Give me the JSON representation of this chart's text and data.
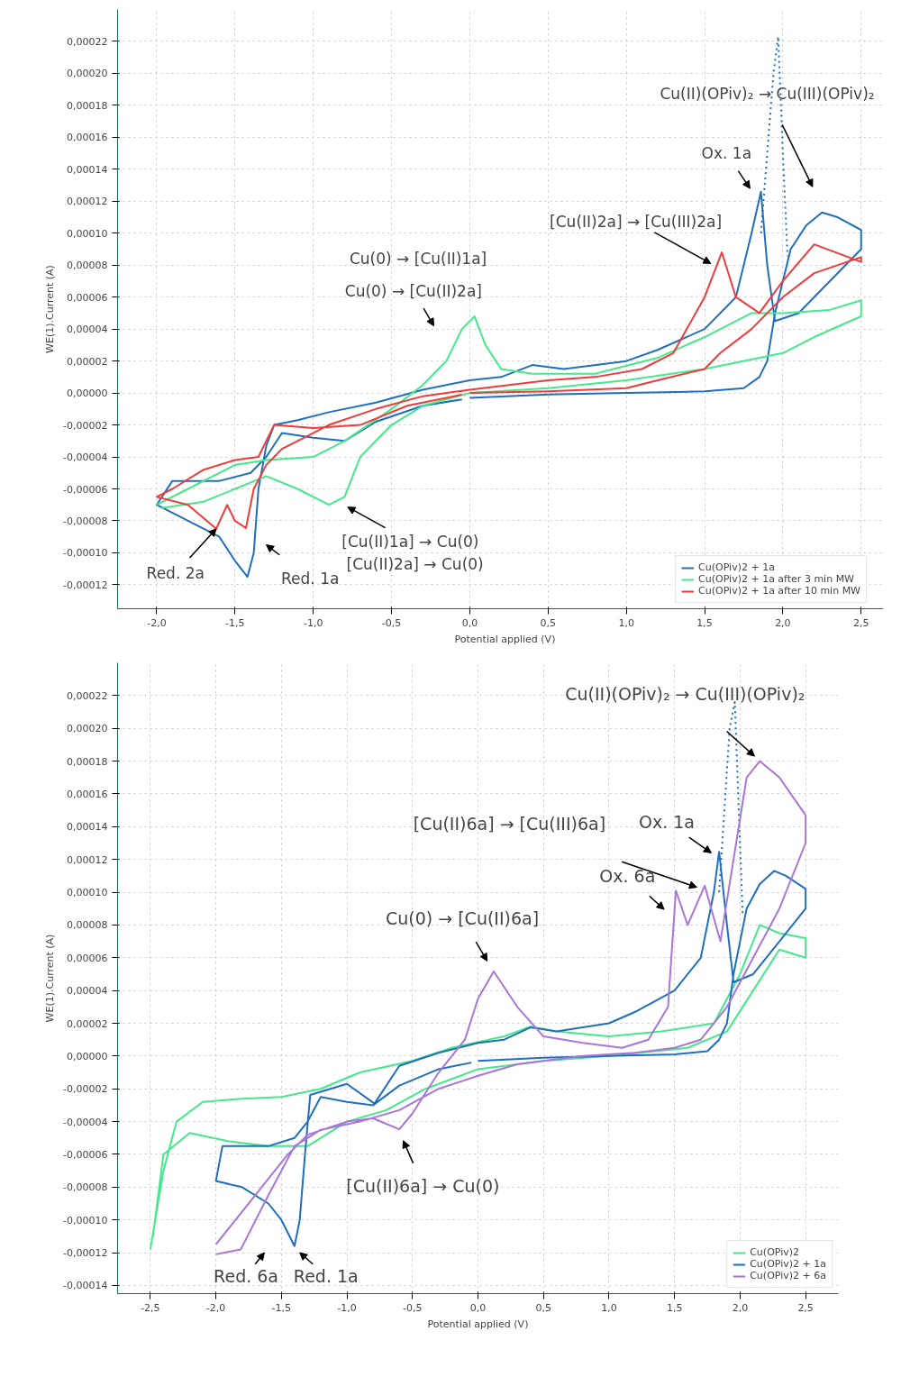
{
  "chart_data": [
    {
      "type": "line",
      "xlabel": "Potential applied (V)",
      "ylabel": "WE(1).Current (A)",
      "grid": true,
      "legend": "bottom right",
      "marker": "none",
      "xlim": [
        -2.25,
        2.7
      ],
      "ylim": [
        -0.000135,
        0.00024
      ],
      "xticks": [
        {
          "value": -2.0,
          "label": "-2,0"
        },
        {
          "value": -1.5,
          "label": "-1,5"
        },
        {
          "value": -1.0,
          "label": "-1,0"
        },
        {
          "value": -0.5,
          "label": "-0,5"
        },
        {
          "value": 0.0,
          "label": "0,0"
        },
        {
          "value": 0.5,
          "label": "0,5"
        },
        {
          "value": 1.0,
          "label": "1,0"
        },
        {
          "value": 1.5,
          "label": "1,5"
        },
        {
          "value": 2.0,
          "label": "2,0"
        },
        {
          "value": 2.5,
          "label": "2,5"
        }
      ],
      "yticks": [
        {
          "value": -0.00012,
          "label": "-0,00012"
        },
        {
          "value": -0.0001,
          "label": "-0,00010"
        },
        {
          "value": -8e-05,
          "label": "-0,00008"
        },
        {
          "value": -6e-05,
          "label": "-0,00006"
        },
        {
          "value": -4e-05,
          "label": "-0,00004"
        },
        {
          "value": -2e-05,
          "label": "-0,00002"
        },
        {
          "value": 0.0,
          "label": "0,00000"
        },
        {
          "value": 2e-05,
          "label": "0,00002"
        },
        {
          "value": 4e-05,
          "label": "0,00004"
        },
        {
          "value": 6e-05,
          "label": "0,00006"
        },
        {
          "value": 8e-05,
          "label": "0,00008"
        },
        {
          "value": 0.0001,
          "label": "0,00010"
        },
        {
          "value": 0.00012,
          "label": "0,00012"
        },
        {
          "value": 0.00014,
          "label": "0,00014"
        },
        {
          "value": 0.00016,
          "label": "0,00016"
        },
        {
          "value": 0.00018,
          "label": "0,00018"
        },
        {
          "value": 0.0002,
          "label": "0,00020"
        },
        {
          "value": 0.00022,
          "label": "0,00022"
        }
      ],
      "series": [
        {
          "name": "Cu(OPiv)2 + 1a",
          "color": "#1f6fbf",
          "x": [
            0.0,
            0.5,
            1.0,
            1.5,
            1.75,
            1.85,
            1.9,
            1.95,
            2.05,
            2.15,
            2.25,
            2.35,
            2.5,
            2.5,
            2.3,
            2.1,
            1.95,
            1.9,
            1.86,
            1.8,
            1.7,
            1.5,
            1.2,
            1.0,
            0.6,
            0.4,
            0.2,
            0.0,
            -0.3,
            -0.6,
            -0.9,
            -1.1,
            -1.25,
            -1.3,
            -1.35,
            -1.38,
            -1.42,
            -1.5,
            -1.6,
            -1.8,
            -2.0,
            -1.9,
            -1.6,
            -1.4,
            -1.3,
            -1.2,
            -1.0,
            -0.8,
            -0.6,
            -0.3,
            -0.05
          ],
          "values": [
            -3e-06,
            -1e-06,
            0.0,
            1e-06,
            3e-06,
            1e-05,
            2e-05,
            5e-05,
            9e-05,
            0.000105,
            0.000113,
            0.00011,
            0.000102,
            9e-05,
            7e-05,
            5e-05,
            4.5e-05,
            8e-05,
            0.000126,
            0.0001,
            6e-05,
            4e-05,
            2.7e-05,
            2e-05,
            1.5e-05,
            1.75e-05,
            1e-05,
            8e-06,
            2e-06,
            -6e-06,
            -1.2e-05,
            -1.7e-05,
            -2e-05,
            -3.3e-05,
            -6e-05,
            -0.0001,
            -0.000115,
            -0.000105,
            -9e-05,
            -8e-05,
            -7e-05,
            -5.5e-05,
            -5.5e-05,
            -5e-05,
            -4e-05,
            -2.5e-05,
            -2.8e-05,
            -3e-05,
            -1.8e-05,
            -8e-06,
            -4e-06
          ]
        },
        {
          "color": "#1f6fbf",
          "line_style": "dotted",
          "x": [
            1.86,
            1.9,
            1.94,
            1.97,
            2.0,
            2.03
          ],
          "values": [
            0.0001,
            0.00015,
            0.0002,
            0.000223,
            0.00015,
            8.55e-05
          ]
        },
        {
          "name": "Cu(OPiv)2 + 1a after 3 min MW",
          "color": "#45e88a",
          "x": [
            -2.0,
            -1.8,
            -1.5,
            -1.3,
            -1.0,
            -0.8,
            -0.5,
            -0.3,
            -0.15,
            -0.05,
            0.03,
            0.1,
            0.2,
            0.4,
            0.8,
            1.2,
            1.5,
            1.8,
            2.0,
            2.3,
            2.5,
            2.5,
            2.2,
            2.0,
            1.5,
            1.0,
            0.5,
            0.0,
            -0.3,
            -0.5,
            -0.7,
            -0.8,
            -0.9,
            -1.1,
            -1.3,
            -1.5,
            -1.7,
            -1.97
          ],
          "values": [
            -7e-05,
            -6e-05,
            -4.5e-05,
            -4.2e-05,
            -4e-05,
            -3e-05,
            -1e-05,
            5e-06,
            2e-05,
            4e-05,
            4.8e-05,
            3e-05,
            1.5e-05,
            1.2e-05,
            1.2e-05,
            2.2e-05,
            3.5e-05,
            5e-05,
            5e-05,
            5.2e-05,
            5.8e-05,
            4.8e-05,
            3.5e-05,
            2.5e-05,
            1.5e-05,
            8e-06,
            3e-06,
            0.0,
            -8e-06,
            -2e-05,
            -4e-05,
            -6.5e-05,
            -7e-05,
            -6e-05,
            -5.2e-05,
            -6e-05,
            -6.8e-05,
            -7.2e-05
          ]
        },
        {
          "name": "Cu(OPiv)2 + 1a after 10 min MW",
          "color": "#ef3b3b",
          "x": [
            0.0,
            0.5,
            1.0,
            1.2,
            1.5,
            1.6,
            1.8,
            2.0,
            2.2,
            2.5,
            2.5,
            2.2,
            2.0,
            1.85,
            1.7,
            1.61,
            1.5,
            1.3,
            1.1,
            0.8,
            0.5,
            0.0,
            -0.3,
            -0.6,
            -0.9,
            -1.1,
            -1.2,
            -1.3,
            -1.38,
            -1.43,
            -1.5,
            -1.55,
            -1.62,
            -1.8,
            -2.0,
            -1.9,
            -1.7,
            -1.5,
            -1.35,
            -1.25,
            -1.0,
            -0.7,
            -0.4,
            -0.05
          ],
          "values": [
            0.0,
            1e-06,
            3e-06,
            8e-06,
            1.5e-05,
            2.5e-05,
            4e-05,
            6e-05,
            7.5e-05,
            8.5e-05,
            8.2e-05,
            9.3e-05,
            7e-05,
            5e-05,
            6e-05,
            8.8e-05,
            6e-05,
            2.5e-05,
            1.5e-05,
            1e-05,
            8e-06,
            2e-06,
            -2e-06,
            -1e-05,
            -2e-05,
            -3e-05,
            -3.5e-05,
            -4.5e-05,
            -6e-05,
            -8.45e-05,
            -8e-05,
            -7e-05,
            -8.5e-05,
            -7e-05,
            -6.5e-05,
            -6e-05,
            -4.8e-05,
            -4.2e-05,
            -4e-05,
            -2e-05,
            -2.2e-05,
            -2e-05,
            -8e-06,
            -1e-06
          ]
        }
      ],
      "annotations": [
        "Cu(II)(OPiv)₂ → Cu(III)(OPiv)₂",
        "Ox. 1a",
        "[Cu(II)2a] → [Cu(III)2a]",
        "Cu(0) → [Cu(II)1a]",
        "Cu(0) → [Cu(II)2a]",
        "[Cu(II)1a] → Cu(0)",
        "[Cu(II)2a] → Cu(0)",
        {
          "text": "Red. 2a",
          "x": -1.62,
          "y": -8.5e-05
        },
        "Red. 1a"
      ]
    },
    {
      "type": "line",
      "xlabel": "Potential applied (V)",
      "ylabel": "WE(1).Current (A)",
      "grid": true,
      "legend": "bottom right",
      "marker": "none",
      "xlim": [
        -2.75,
        2.75
      ],
      "ylim": [
        -0.000145,
        0.00024
      ],
      "xticks": [
        {
          "value": -2.5,
          "label": "-2,5"
        },
        {
          "value": -2.0,
          "label": "-2,0"
        },
        {
          "value": -1.5,
          "label": "-1,5"
        },
        {
          "value": -1.0,
          "label": "-1,0"
        },
        {
          "value": -0.5,
          "label": "-0,5"
        },
        {
          "value": 0.0,
          "label": "0,0"
        },
        {
          "value": 0.5,
          "label": "0,5"
        },
        {
          "value": 1.0,
          "label": "1,0"
        },
        {
          "value": 1.5,
          "label": "1,5"
        },
        {
          "value": 2.0,
          "label": "2,0"
        },
        {
          "value": 2.5,
          "label": "2,5"
        }
      ],
      "yticks": [
        {
          "value": -0.00014,
          "label": "-0,00014"
        },
        {
          "value": -0.00012,
          "label": "-0,00012"
        },
        {
          "value": -0.0001,
          "label": "-0,00010"
        },
        {
          "value": -8e-05,
          "label": "-0,00008"
        },
        {
          "value": -6e-05,
          "label": "-0,00006"
        },
        {
          "value": -4e-05,
          "label": "-0,00004"
        },
        {
          "value": -2e-05,
          "label": "-0,00002"
        },
        {
          "value": 0.0,
          "label": "0,00000"
        },
        {
          "value": 2e-05,
          "label": "0,00002"
        },
        {
          "value": 4e-05,
          "label": "0,00004"
        },
        {
          "value": 6e-05,
          "label": "0,00006"
        },
        {
          "value": 8e-05,
          "label": "0,00008"
        },
        {
          "value": 0.0001,
          "label": "0,00010"
        },
        {
          "value": 0.00012,
          "label": "0,00012"
        },
        {
          "value": 0.00014,
          "label": "0,00014"
        },
        {
          "value": 0.00016,
          "label": "0,00016"
        },
        {
          "value": 0.00018,
          "label": "0,00018"
        },
        {
          "value": 0.0002,
          "label": "0,00020"
        },
        {
          "value": 0.00022,
          "label": "0,00022"
        }
      ],
      "series": [
        {
          "name": "Cu(OPiv)2",
          "color": "#45e88a",
          "x": [
            -2.5,
            -2.4,
            -2.3,
            -2.1,
            -1.8,
            -1.5,
            -1.2,
            -0.9,
            -0.5,
            -0.2,
            0.2,
            0.4,
            0.6,
            1.0,
            1.4,
            1.8,
            2.0,
            2.15,
            2.3,
            2.5,
            2.5,
            2.3,
            2.1,
            1.9,
            1.6,
            1.0,
            0.5,
            0.0,
            -0.4,
            -0.7,
            -1.0,
            -1.3,
            -1.6,
            -1.9,
            -2.2,
            -2.4,
            -2.48
          ],
          "values": [
            -0.000118,
            -7e-05,
            -4e-05,
            -2.8e-05,
            -2.6e-05,
            -2.5e-05,
            -2e-05,
            -1e-05,
            -3e-06,
            5e-06,
            1.2e-05,
            1.8e-05,
            1.5e-05,
            1.2e-05,
            1.5e-05,
            2e-05,
            5e-05,
            8e-05,
            7.5e-05,
            7.2e-05,
            6e-05,
            6.5e-05,
            4e-05,
            1.5e-05,
            5e-06,
            0.0,
            -3e-06,
            -8e-06,
            -2e-05,
            -3.3e-05,
            -4e-05,
            -5.5e-05,
            -5.5e-05,
            -5.2e-05,
            -4.7e-05,
            -6e-05,
            -0.00011
          ]
        },
        {
          "name": "Cu(OPiv)2 + 1a",
          "color": "#1f6fbf",
          "x": [
            0.0,
            0.5,
            1.0,
            1.5,
            1.75,
            1.84,
            1.9,
            1.95,
            2.05,
            2.15,
            2.26,
            2.35,
            2.5,
            2.5,
            2.3,
            2.1,
            1.95,
            1.9,
            1.84,
            1.8,
            1.7,
            1.5,
            1.2,
            1.0,
            0.6,
            0.4,
            0.2,
            0.0,
            -0.3,
            -0.6,
            -0.79,
            -1.0,
            -1.28,
            -1.32,
            -1.36,
            -1.4,
            -1.5,
            -1.6,
            -1.8,
            -2.0,
            -1.95,
            -1.6,
            -1.4,
            -1.3,
            -1.2,
            -1.0,
            -0.8,
            -0.6,
            -0.3,
            -0.05
          ],
          "values": [
            -3e-06,
            -1e-06,
            0.0,
            1e-06,
            3e-06,
            1e-05,
            2e-05,
            5e-05,
            9e-05,
            0.000105,
            0.000113,
            0.00011,
            0.000102,
            9e-05,
            7e-05,
            5e-05,
            4.5e-05,
            8e-05,
            0.0001247,
            0.0001,
            6e-05,
            4e-05,
            2.7e-05,
            2e-05,
            1.5e-05,
            1.75e-05,
            1e-05,
            8e-06,
            2e-06,
            -6e-06,
            -2.9e-05,
            -1.7e-05,
            -2.37e-05,
            -6e-05,
            -0.0001,
            -0.000116,
            -0.0001,
            -9e-05,
            -8e-05,
            -7.63e-05,
            -5.5e-05,
            -5.5e-05,
            -5e-05,
            -4e-05,
            -2.5e-05,
            -2.8e-05,
            -3e-05,
            -1.8e-05,
            -8e-06,
            -4e-06
          ]
        },
        {
          "color": "#1f6fbf",
          "line_style": "dotted",
          "x": [
            1.84,
            1.88,
            1.92,
            1.96,
            1.99,
            2.02
          ],
          "values": [
            0.0001,
            0.00015,
            0.0002,
            0.000216,
            0.00015,
            8.5e-05
          ]
        },
        {
          "name": "Cu(OPiv)2 + 6a",
          "color": "#a875d8",
          "x": [
            -2.0,
            -1.8,
            -1.6,
            -1.45,
            -1.3,
            -1.0,
            -0.8,
            -0.6,
            -0.5,
            -0.3,
            -0.1,
            0.0,
            0.12,
            0.3,
            0.5,
            0.8,
            1.1,
            1.3,
            1.45,
            1.51,
            1.6,
            1.73,
            1.85,
            1.95,
            2.05,
            2.15,
            2.3,
            2.5,
            2.5,
            2.3,
            2.1,
            1.9,
            1.7,
            1.5,
            1.2,
            0.8,
            0.3,
            0.0,
            -0.3,
            -0.6,
            -0.9,
            -1.2,
            -1.4,
            -1.6,
            -1.81,
            -2.0
          ],
          "values": [
            -0.000115,
            -9.5e-05,
            -7.5e-05,
            -6e-05,
            -4.8e-05,
            -4e-05,
            -3.8e-05,
            -4.47e-05,
            -3.5e-05,
            -1e-05,
            1e-05,
            3.5e-05,
            5.16e-05,
            3e-05,
            1.2e-05,
            8e-06,
            5e-06,
            1e-05,
            3e-05,
            0.000101,
            8e-05,
            0.000104,
            7e-05,
            0.00012,
            0.00017,
            0.00018,
            0.00017,
            0.000147,
            0.00013,
            9e-05,
            6e-05,
            3e-05,
            1e-05,
            5e-06,
            2e-06,
            0.0,
            -5e-06,
            -1.2e-05,
            -2e-05,
            -3.3e-05,
            -4e-05,
            -4.5e-05,
            -5.5e-05,
            -8.5e-05,
            -0.000118,
            -0.000121
          ]
        }
      ],
      "annotations": [
        "Cu(II)(OPiv)₂ → Cu(III)(OPiv)₂",
        "Ox. 1a",
        "[Cu(II)6a] → [Cu(III)6a]",
        "Ox. 6a",
        "Cu(0) → [Cu(II)6a]",
        "[Cu(II)6a] → Cu(0)",
        "Red. 6a",
        "Red. 1a"
      ]
    }
  ]
}
